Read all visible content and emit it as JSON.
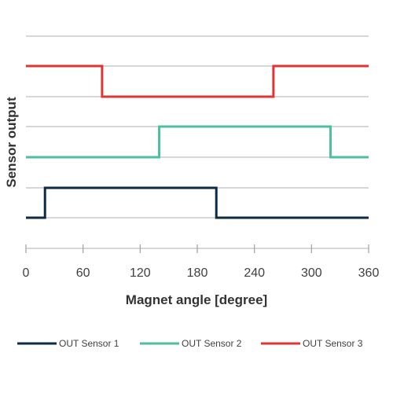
{
  "chart_data": {
    "type": "line",
    "step": true,
    "xlabel": "Magnet angle [degree]",
    "ylabel": "Sensor output",
    "xlim": [
      0,
      360
    ],
    "xticks": [
      0,
      60,
      120,
      180,
      240,
      300,
      360
    ],
    "grid": "horizontal",
    "legend_position": "bottom",
    "series": [
      {
        "name": "OUT Sensor 1",
        "color": "#0d2b45",
        "low": 0,
        "high": 1,
        "points": [
          [
            0,
            0
          ],
          [
            20,
            0
          ],
          [
            20,
            1
          ],
          [
            200,
            1
          ],
          [
            200,
            0
          ],
          [
            360,
            0
          ]
        ]
      },
      {
        "name": "OUT Sensor 2",
        "color": "#4cbfa0",
        "low": 2,
        "high": 3,
        "points": [
          [
            0,
            2
          ],
          [
            140,
            2
          ],
          [
            140,
            3
          ],
          [
            320,
            3
          ],
          [
            320,
            2
          ],
          [
            360,
            2
          ]
        ]
      },
      {
        "name": "OUT Sensor 3",
        "color": "#e03535",
        "low": 4,
        "high": 5,
        "points": [
          [
            0,
            5
          ],
          [
            80,
            5
          ],
          [
            80,
            4
          ],
          [
            260,
            4
          ],
          [
            260,
            5
          ],
          [
            360,
            5
          ]
        ]
      }
    ]
  }
}
